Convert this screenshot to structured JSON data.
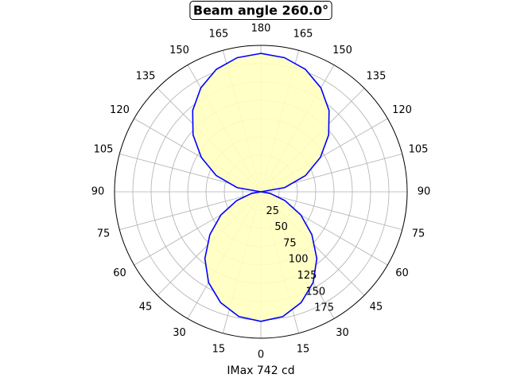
{
  "chart_data": {
    "type": "polar",
    "title": "Beam angle 260.0°",
    "xlabel": "IMax 742 cd",
    "theta_zero": "bottom",
    "x": [
      -180,
      -170,
      -160,
      -150,
      -140,
      -130,
      -120,
      -110,
      -100,
      -90,
      -80,
      -70,
      -60,
      -50,
      -40,
      -30,
      -20,
      -10,
      0,
      10,
      20,
      30,
      40,
      50,
      60,
      70,
      80,
      90,
      100,
      110,
      120,
      130,
      140,
      150,
      160,
      170,
      180
    ],
    "series": [
      {
        "color": "#0000ff",
        "fill": "#ffffc0",
        "values": [
          189,
          186,
          178,
          164,
          145,
          121,
          94,
          65,
          33,
          0,
          13,
          35,
          63,
          91,
          119,
          143,
          161,
          173,
          177,
          173,
          161,
          143,
          119,
          91,
          63,
          35,
          13,
          0,
          33,
          65,
          94,
          121,
          145,
          164,
          178,
          186,
          189
        ]
      }
    ],
    "rlim": [
      0,
      200
    ],
    "rticks": [
      25,
      50,
      75,
      100,
      125,
      150,
      175
    ],
    "thetaticks": [
      {
        "value": -165,
        "label": "165"
      },
      {
        "value": -150,
        "label": "150"
      },
      {
        "value": -135,
        "label": "135"
      },
      {
        "value": -120,
        "label": "120"
      },
      {
        "value": -105,
        "label": "105"
      },
      {
        "value": -90,
        "label": "90"
      },
      {
        "value": -75,
        "label": "75"
      },
      {
        "value": -60,
        "label": "60"
      },
      {
        "value": -45,
        "label": "45"
      },
      {
        "value": -30,
        "label": "30"
      },
      {
        "value": -15,
        "label": "15"
      },
      0,
      15,
      30,
      45,
      60,
      75,
      90,
      105,
      120,
      135,
      150,
      165,
      180
    ],
    "grid": true
  }
}
